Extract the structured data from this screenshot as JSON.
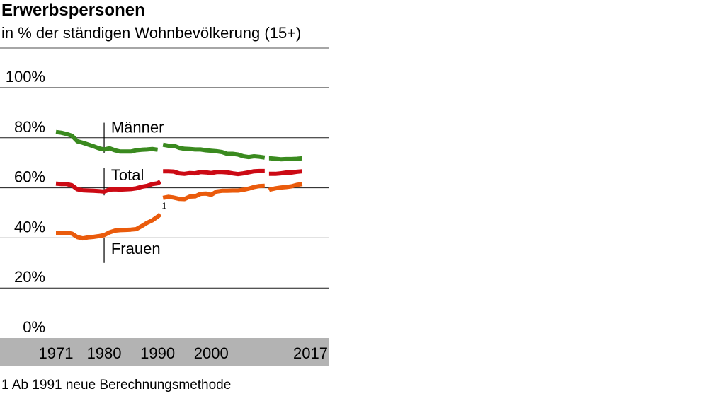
{
  "title": "Erwerbspersonen",
  "subtitle": "in % der ständigen Wohnbevölkerung (15+)",
  "footnote": "1 Ab 1991 neue Berechnungsmethode",
  "chart_data": {
    "type": "line",
    "title": "Erwerbspersonen",
    "subtitle": "in % der ständigen Wohnbevölkerung (15+)",
    "xlabel": "",
    "ylabel": "",
    "xlim": [
      1970,
      2018
    ],
    "ylim": [
      0,
      100
    ],
    "x_ticks": [
      1971,
      1980,
      1990,
      2000,
      2017
    ],
    "y_ticks": [
      {
        "value": 0,
        "label": "0%"
      },
      {
        "value": 20,
        "label": "20%"
      },
      {
        "value": 40,
        "label": "40%"
      },
      {
        "value": 60,
        "label": "60%"
      },
      {
        "value": 80,
        "label": "80%"
      },
      {
        "value": 100,
        "label": "100%"
      }
    ],
    "grid": true,
    "legend": "direct labels",
    "annotation": {
      "text": "1",
      "x": 1990.5,
      "y": 53
    },
    "series": [
      {
        "name": "Männer",
        "color": "#3a8a1f",
        "label_x": 1981.3,
        "label_y": 82,
        "segments": [
          [
            [
              1971,
              82.3
            ],
            [
              1972,
              82
            ],
            [
              1973,
              81.5
            ],
            [
              1974,
              80.8
            ],
            [
              1975,
              78.6
            ],
            [
              1976,
              78
            ],
            [
              1977,
              77.3
            ],
            [
              1978,
              76.6
            ],
            [
              1979,
              75.8
            ],
            [
              1980,
              75.3
            ],
            [
              1981,
              75.8
            ],
            [
              1982,
              75
            ],
            [
              1983,
              74.5
            ],
            [
              1984,
              74.5
            ],
            [
              1985,
              74.5
            ],
            [
              1986,
              75
            ],
            [
              1987,
              75.2
            ],
            [
              1988,
              75.3
            ],
            [
              1989,
              75.5
            ],
            [
              1990,
              75.2
            ]
          ],
          [
            [
              1991,
              77.2
            ],
            [
              1992,
              76.8
            ],
            [
              1993,
              76.8
            ],
            [
              1994,
              76
            ],
            [
              1995,
              75.6
            ],
            [
              1996,
              75.5
            ],
            [
              1997,
              75.3
            ],
            [
              1998,
              75.3
            ],
            [
              1999,
              75
            ],
            [
              2000,
              74.8
            ],
            [
              2001,
              74.6
            ],
            [
              2002,
              74.3
            ],
            [
              2003,
              73.6
            ],
            [
              2004,
              73.6
            ],
            [
              2005,
              73.3
            ],
            [
              2006,
              72.6
            ],
            [
              2007,
              72.3
            ],
            [
              2008,
              72.6
            ],
            [
              2009,
              72.4
            ],
            [
              2010,
              72.1
            ]
          ],
          [
            [
              2010.8,
              71.8
            ],
            [
              2011,
              71.8
            ],
            [
              2012,
              71.6
            ],
            [
              2013,
              71.4
            ],
            [
              2014,
              71.5
            ],
            [
              2015,
              71.5
            ],
            [
              2016,
              71.6
            ],
            [
              2017,
              71.8
            ]
          ]
        ]
      },
      {
        "name": "Total",
        "color": "#cc0a14",
        "label_x": 1981.3,
        "label_y": 63,
        "segments": [
          [
            [
              1971,
              61.7
            ],
            [
              1972,
              61.5
            ],
            [
              1973,
              61.5
            ],
            [
              1974,
              61
            ],
            [
              1975,
              59.4
            ],
            [
              1976,
              59
            ],
            [
              1977,
              58.9
            ],
            [
              1978,
              58.8
            ],
            [
              1979,
              58.7
            ],
            [
              1980,
              58.5
            ],
            [
              1981,
              59.3
            ],
            [
              1982,
              59.4
            ],
            [
              1983,
              59.3
            ],
            [
              1984,
              59.4
            ],
            [
              1985,
              59.5
            ],
            [
              1986,
              59.8
            ],
            [
              1987,
              60.4
            ],
            [
              1988,
              60.8
            ],
            [
              1989,
              61.5
            ],
            [
              1990,
              61.8
            ],
            [
              1990.5,
              62.5
            ]
          ],
          [
            [
              1991,
              66.6
            ],
            [
              1992,
              66.6
            ],
            [
              1993,
              66.5
            ],
            [
              1994,
              65.8
            ],
            [
              1995,
              65.6
            ],
            [
              1996,
              65.9
            ],
            [
              1997,
              65.8
            ],
            [
              1998,
              66.3
            ],
            [
              1999,
              66.2
            ],
            [
              2000,
              65.9
            ],
            [
              2001,
              66.3
            ],
            [
              2002,
              66.3
            ],
            [
              2003,
              66.2
            ],
            [
              2004,
              65.8
            ],
            [
              2005,
              65.5
            ],
            [
              2006,
              65.8
            ],
            [
              2007,
              66.2
            ],
            [
              2008,
              66.6
            ],
            [
              2009,
              66.7
            ],
            [
              2010,
              66.7
            ]
          ],
          [
            [
              2010.8,
              65.6
            ],
            [
              2011,
              65.6
            ],
            [
              2012,
              65.6
            ],
            [
              2013,
              65.8
            ],
            [
              2014,
              66.1
            ],
            [
              2015,
              66.1
            ],
            [
              2016,
              66.4
            ],
            [
              2017,
              66.6
            ]
          ]
        ]
      },
      {
        "name": "Frauen",
        "color": "#ea5b0c",
        "label_x": 1981.3,
        "label_y": 33.6,
        "segments": [
          [
            [
              1971,
              42
            ],
            [
              1972,
              42
            ],
            [
              1973,
              42.1
            ],
            [
              1974,
              41.7
            ],
            [
              1975,
              40.3
            ],
            [
              1976,
              39.8
            ],
            [
              1977,
              40.2
            ],
            [
              1978,
              40.4
            ],
            [
              1979,
              40.7
            ],
            [
              1980,
              41.1
            ],
            [
              1981,
              42.2
            ],
            [
              1982,
              42.9
            ],
            [
              1983,
              43.1
            ],
            [
              1984,
              43.2
            ],
            [
              1985,
              43.3
            ],
            [
              1986,
              43.5
            ],
            [
              1987,
              44.7
            ],
            [
              1988,
              46
            ],
            [
              1989,
              47
            ],
            [
              1990,
              48.5
            ],
            [
              1990.5,
              49.4
            ]
          ],
          [
            [
              1991,
              56
            ],
            [
              1992,
              56.4
            ],
            [
              1993,
              56.1
            ],
            [
              1994,
              55.6
            ],
            [
              1995,
              55.5
            ],
            [
              1996,
              56.5
            ],
            [
              1997,
              56.6
            ],
            [
              1998,
              57.6
            ],
            [
              1999,
              57.7
            ],
            [
              2000,
              57.2
            ],
            [
              2001,
              58.5
            ],
            [
              2002,
              58.8
            ],
            [
              2003,
              58.8
            ],
            [
              2004,
              58.9
            ],
            [
              2005,
              58.9
            ],
            [
              2006,
              59.2
            ],
            [
              2007,
              59.7
            ],
            [
              2008,
              60.3
            ],
            [
              2009,
              60.7
            ],
            [
              2010,
              60.8
            ]
          ],
          [
            [
              2010.8,
              59.1
            ],
            [
              2011,
              59.3
            ],
            [
              2012,
              59.8
            ],
            [
              2013,
              60.1
            ],
            [
              2014,
              60.3
            ],
            [
              2015,
              60.6
            ],
            [
              2016,
              61.2
            ],
            [
              2017,
              61.5
            ]
          ]
        ]
      }
    ]
  }
}
